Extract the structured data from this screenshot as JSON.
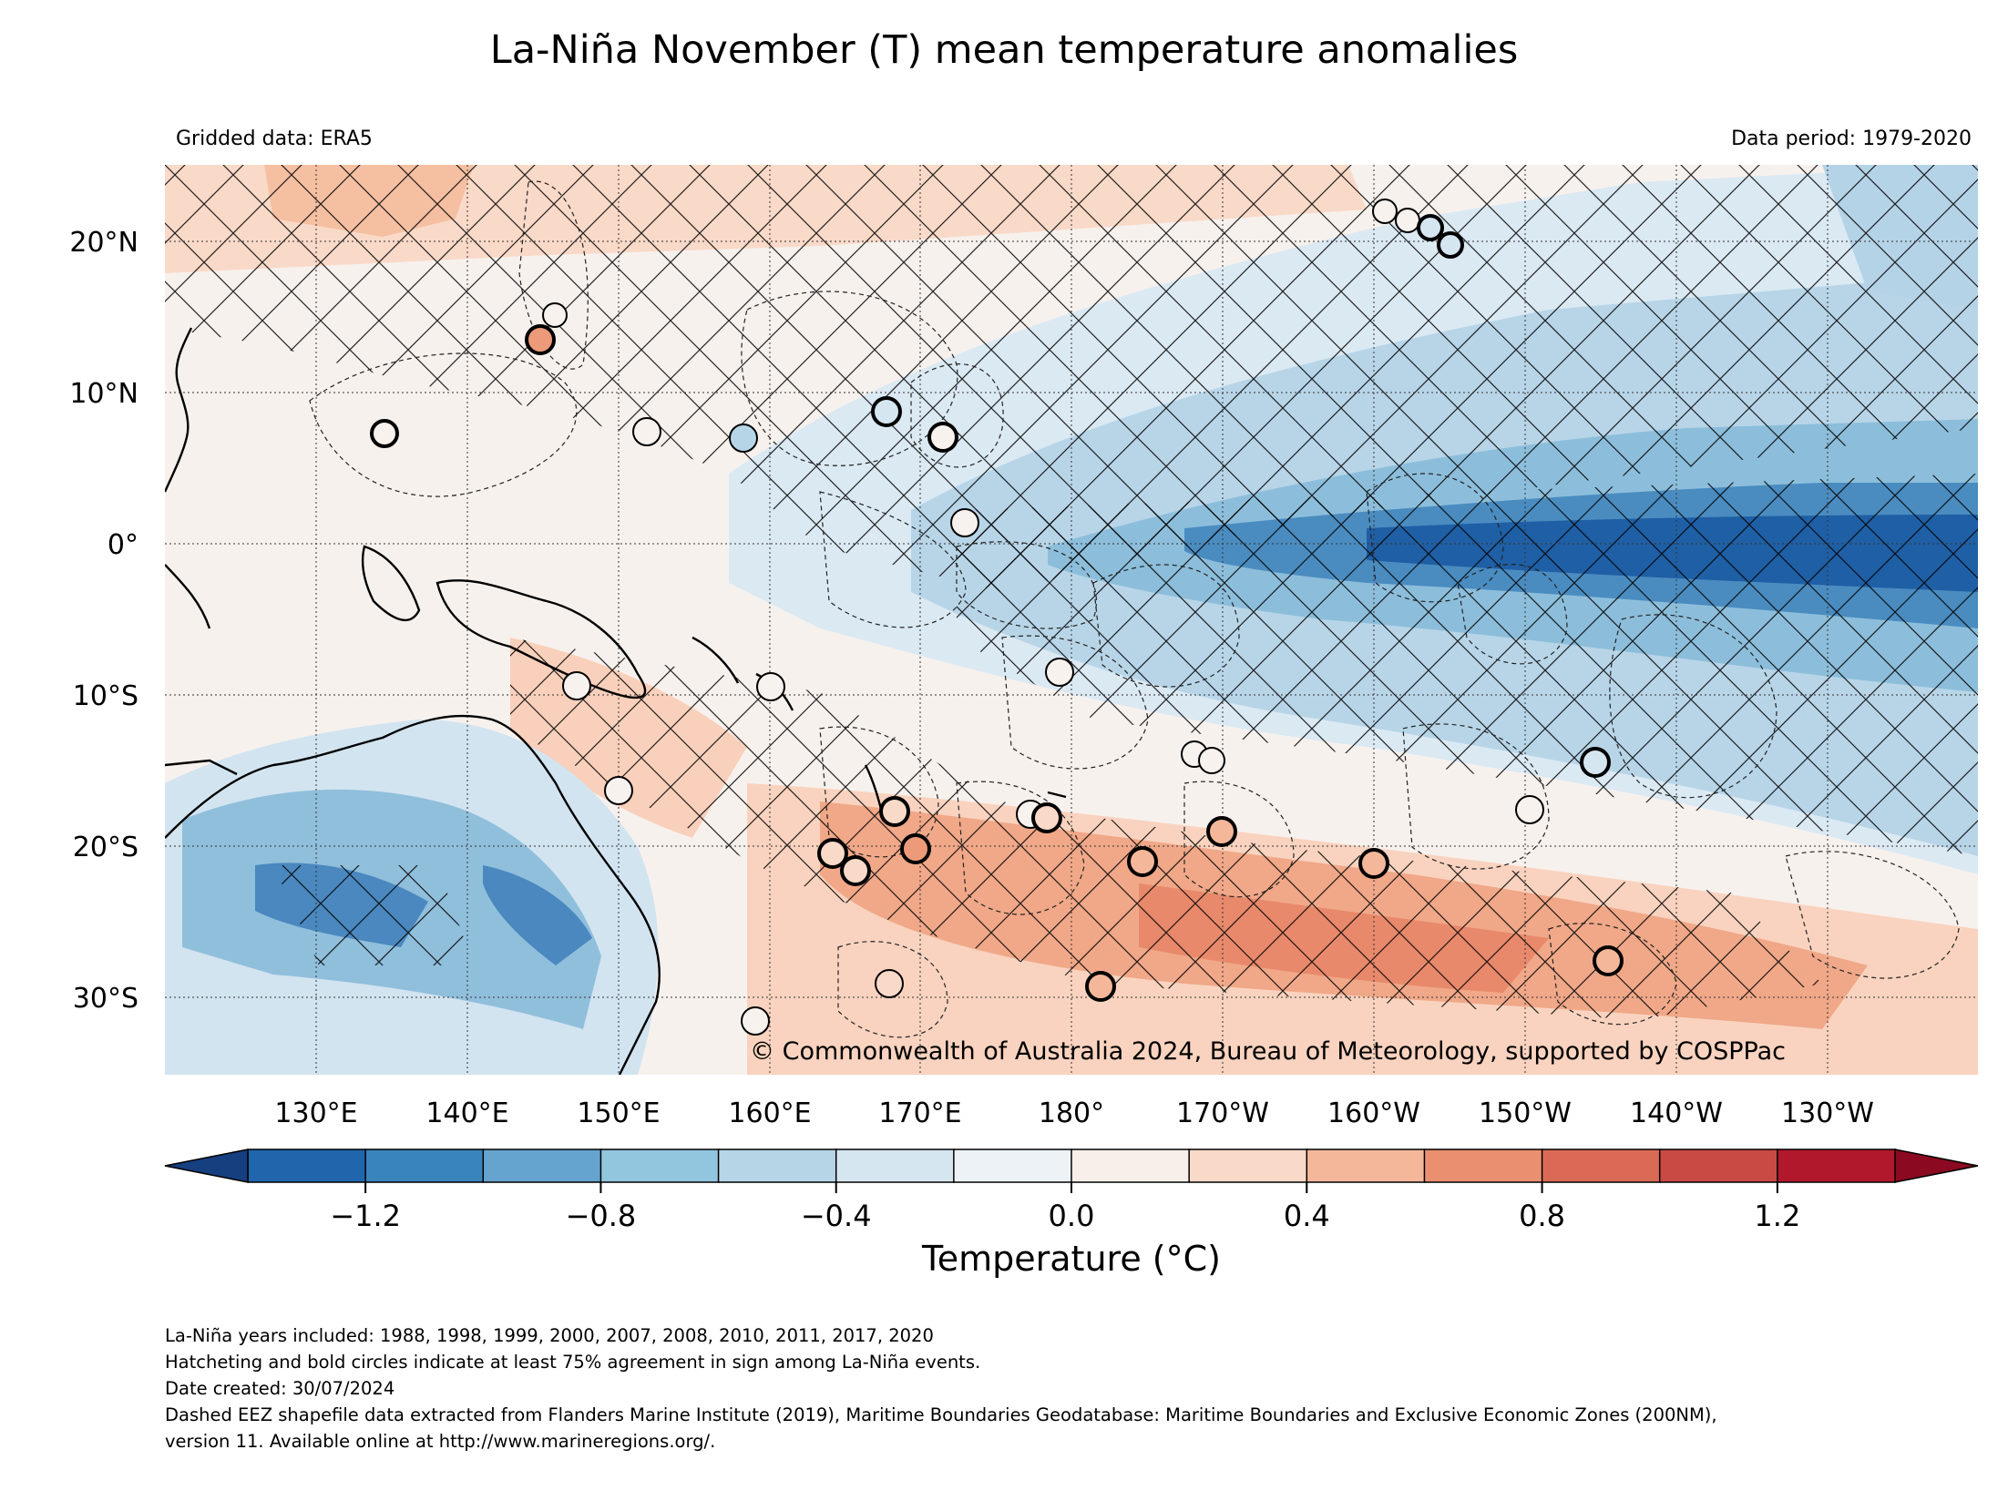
{
  "header": {
    "title": "La-Niña November (T) mean temperature anomalies",
    "left_note": "Gridded data: ERA5",
    "right_note": "Data period: 1979-2020"
  },
  "map": {
    "credit": "© Commonwealth of Australia 2024, Bureau of Meteorology, supported by COSPPac",
    "lat_ticks": [
      "20°N",
      "10°N",
      "0°",
      "10°S",
      "20°S",
      "30°S"
    ],
    "lon_ticks": [
      "130°E",
      "140°E",
      "150°E",
      "160°E",
      "170°E",
      "180°",
      "170°W",
      "160°W",
      "150°W",
      "140°W",
      "130°W"
    ],
    "extent": {
      "lon": [
        120,
        240
      ],
      "lat": [
        -35,
        25
      ]
    },
    "colors": {
      "cold_strong": "#1f5fa5",
      "cold": "#6fa8d0",
      "cold_light": "#d6e6f1",
      "neutral": "#f7f2ee",
      "warm_light": "#f9d5c3",
      "warm": "#ec9a7a"
    }
  },
  "colorbar": {
    "label": "Temperature (°C)",
    "tick_labels": [
      "−1.2",
      "−0.8",
      "−0.4",
      "0.0",
      "0.4",
      "0.8",
      "1.2"
    ],
    "tick_values": [
      -1.2,
      -0.8,
      -0.4,
      0.0,
      0.4,
      0.8,
      1.2
    ],
    "range": [
      -1.4,
      1.4
    ],
    "colors": [
      "#2166ac",
      "#3a84bc",
      "#64a4cf",
      "#92c5de",
      "#b6d6e8",
      "#d6e6f1",
      "#edf2f6",
      "#f8efea",
      "#f9d9c8",
      "#f5b79a",
      "#ea9070",
      "#da6a55",
      "#c94a45",
      "#b2182b"
    ],
    "extend_low": "#163f80",
    "extend_high": "#8b0a21"
  },
  "footer": {
    "line1": "La-Niña years included: 1988, 1998, 1999, 2000, 2007, 2008, 2010, 2011, 2017, 2020",
    "line2": "Hatcheting and bold circles indicate at least 75% agreement in sign among La-Niña events.",
    "line3": "Date created: 30/07/2024",
    "line4": "Dashed EEZ shapefile data extracted from Flanders Marine Institute (2019), Maritime Boundaries Geodatabase: Maritime Boundaries and Exclusive Economic Zones (200NM),",
    "line5": "version 11. Available online at http://www.marineregions.org/."
  }
}
